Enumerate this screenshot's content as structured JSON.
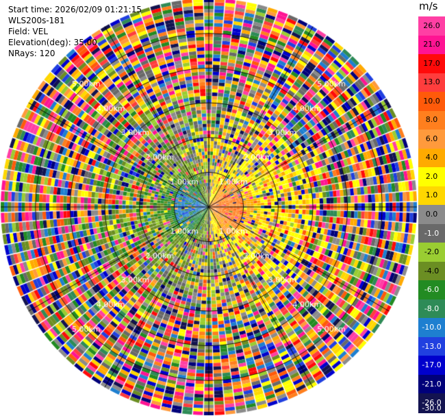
{
  "header": {
    "start_time": "Start time: 2026/02/09 01:21:15",
    "instrument": "WLS200s-181",
    "field": "Field: VEL",
    "elevation": "Elevation(deg): 35.00",
    "nrays": "NRays: 120"
  },
  "colorbar": {
    "unit": "m/s",
    "ticks": [
      "26.0",
      "21.0",
      "17.0",
      "13.0",
      "10.0",
      "8.0",
      "6.0",
      "4.0",
      "2.0",
      "1.0",
      "0.0",
      "-1.0",
      "-2.0",
      "-4.0",
      "-6.0",
      "-8.0",
      "-10.0",
      "-13.0",
      "-17.0",
      "-21.0",
      "-26.0",
      "-30.0"
    ],
    "colors": [
      "#ff3fa4",
      "#ff1493",
      "#ff0a0a",
      "#ff3d3d",
      "#ff5a0a",
      "#ff7f1e",
      "#ff9a3c",
      "#ffaa00",
      "#ffff00",
      "#ffd700",
      "#8b8b8b",
      "#696969",
      "#9acd32",
      "#6b8e23",
      "#228b22",
      "#2e8b57",
      "#1e7fd0",
      "#2040e0",
      "#0000cd",
      "#00007a",
      "#131350"
    ],
    "tick_text_colors": [
      "#000",
      "#000",
      "#000",
      "#000",
      "#000",
      "#000",
      "#000",
      "#000",
      "#000",
      "#000",
      "#000",
      "#fff",
      "#000",
      "#000",
      "#fff",
      "#fff",
      "#fff",
      "#fff",
      "#fff",
      "#fff",
      "#fff",
      "#fff"
    ]
  },
  "chart_data": {
    "type": "heatmap",
    "projection": "polar-ppi",
    "field": "VEL",
    "unit": "m/s",
    "rays": 120,
    "range_rings_km": [
      1,
      2,
      3,
      4,
      5
    ],
    "ring_labels": [
      "1.00km",
      "2.00km",
      "3.00km",
      "4.00km",
      "5.00km"
    ],
    "max_range_km": 6.0,
    "spoke_angles_deg": [
      0,
      30,
      60,
      90,
      120,
      150,
      180,
      210,
      240,
      270,
      300,
      330
    ],
    "color_range": [
      -30,
      30
    ],
    "near_field_pattern": "west half negative (green/blue), east half positive (yellow/orange)",
    "far_field_pattern": "noise beyond ~3.5 km"
  }
}
